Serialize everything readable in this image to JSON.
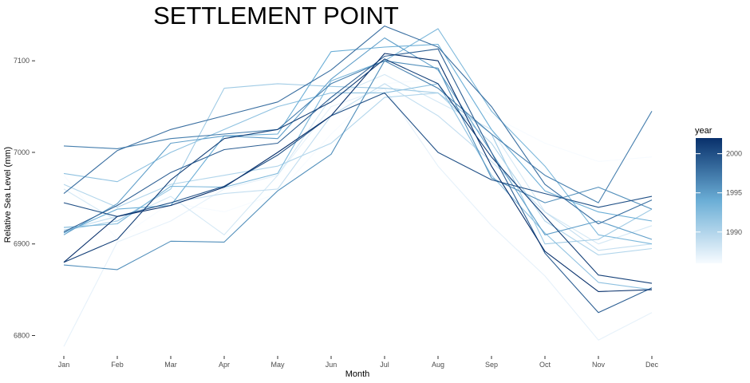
{
  "chart_data": {
    "type": "line",
    "title": "SETTLEMENT POINT",
    "xlabel": "Month",
    "ylabel": "Relative Sea Level (mm)",
    "categories": [
      "Jan",
      "Feb",
      "Mar",
      "Apr",
      "May",
      "Jun",
      "Jul",
      "Aug",
      "Sep",
      "Oct",
      "Nov",
      "Dec"
    ],
    "yticks": [
      6800,
      6900,
      7000,
      7100
    ],
    "ylim": [
      6783,
      7142
    ],
    "grid": false,
    "legend": {
      "title": "year",
      "position": "right",
      "ticks": [
        1990,
        1995,
        2000
      ],
      "range": [
        1986,
        2002
      ],
      "low_color": "#f7fbff",
      "high_color": "#08306b"
    },
    "series": [
      {
        "year": 1986,
        "values": [
          6975,
          6905,
          6945,
          6935,
          6955,
          7020,
          7075,
          7080,
          7040,
          7010,
          6990,
          6995
        ]
      },
      {
        "year": 1987,
        "values": [
          6788,
          6902,
          6925,
          6960,
          6975,
          7050,
          7070,
          6985,
          6920,
          6865,
          6795,
          6825
        ]
      },
      {
        "year": 1988,
        "values": [
          6960,
          6925,
          6952,
          6910,
          6975,
          7060,
          7085,
          7055,
          7025,
          6935,
          6900,
          6920
        ]
      },
      {
        "year": 1989,
        "values": [
          6915,
          6930,
          6945,
          6955,
          6960,
          7040,
          7075,
          7040,
          6990,
          6935,
          6893,
          6900
        ]
      },
      {
        "year": 1990,
        "values": [
          6965,
          6940,
          6965,
          6975,
          6985,
          7010,
          7060,
          7065,
          7010,
          6925,
          6888,
          6895
        ]
      },
      {
        "year": 1991,
        "values": [
          6915,
          6925,
          6960,
          7070,
          7075,
          7072,
          7070,
          7065,
          7020,
          6900,
          6905,
          6938
        ]
      },
      {
        "year": 1992,
        "values": [
          6977,
          6968,
          7000,
          7025,
          7050,
          7065,
          7065,
          7075,
          6975,
          6912,
          6858,
          6850
        ]
      },
      {
        "year": 1993,
        "values": [
          6918,
          6922,
          6963,
          6962,
          6977,
          7078,
          7100,
          7135,
          7045,
          6985,
          6910,
          6900
        ]
      },
      {
        "year": 1994,
        "values": [
          6912,
          6938,
          6942,
          7018,
          7020,
          7110,
          7115,
          7118,
          7025,
          6958,
          6935,
          6925
        ]
      },
      {
        "year": 1995,
        "values": [
          6910,
          6944,
          7010,
          7018,
          7015,
          7080,
          7125,
          7090,
          7000,
          6910,
          6925,
          6905
        ]
      },
      {
        "year": 1996,
        "values": [
          6877,
          6872,
          6903,
          6902,
          6958,
          6998,
          7100,
          7092,
          6972,
          6945,
          6962,
          6938
        ]
      },
      {
        "year": 1997,
        "values": [
          7007,
          7004,
          7015,
          7020,
          7025,
          7075,
          7100,
          7070,
          7020,
          6975,
          6945,
          7045
        ]
      },
      {
        "year": 1998,
        "values": [
          6955,
          7002,
          7025,
          7040,
          7055,
          7090,
          7138,
          7115,
          7050,
          6965,
          6922,
          6948
        ]
      },
      {
        "year": 1999,
        "values": [
          6913,
          6942,
          6978,
          7003,
          7010,
          7060,
          7105,
          7113,
          7000,
          6890,
          6825,
          6852
        ]
      },
      {
        "year": 2000,
        "values": [
          6945,
          6930,
          6945,
          6963,
          6997,
          7040,
          7065,
          7000,
          6970,
          6955,
          6940,
          6952
        ]
      },
      {
        "year": 2001,
        "values": [
          6880,
          6905,
          6970,
          7015,
          7025,
          7055,
          7102,
          7075,
          6995,
          6930,
          6866,
          6857
        ]
      },
      {
        "year": 2002,
        "values": [
          6880,
          6930,
          6942,
          6962,
          7000,
          7040,
          7108,
          7100,
          6985,
          6892,
          6848,
          6850
        ]
      }
    ]
  }
}
